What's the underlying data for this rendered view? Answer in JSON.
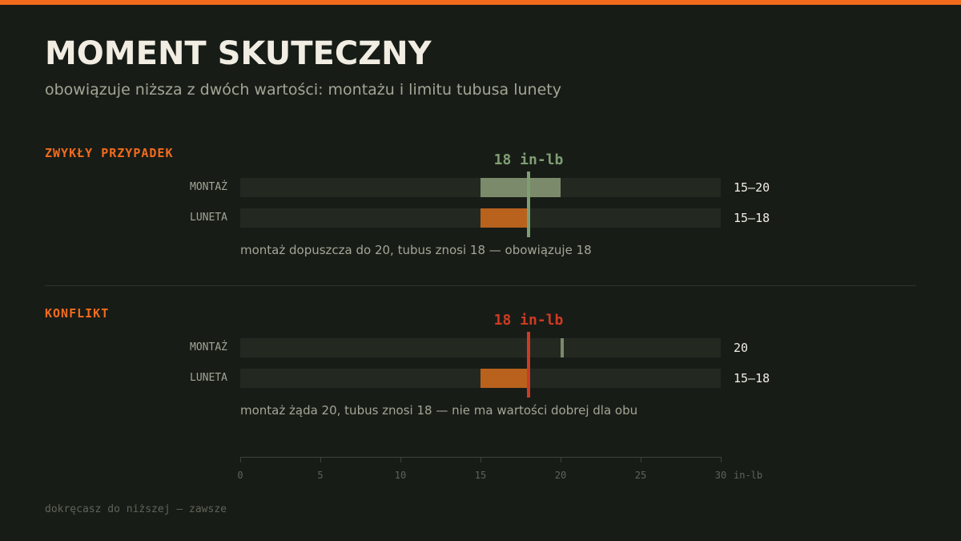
{
  "title": "MOMENT SKUTECZNY",
  "subtitle": "obowiązuje niższa z dwóch wartości: montażu i limitu tubusa lunety",
  "footer": "dokręcasz do niższej — zawsze",
  "colors": {
    "accent": "#f26b1d",
    "mount_range": "#7b8a6a",
    "scope_range": "#b8621e",
    "ok_marker": "#7f9e73",
    "conflict_marker": "#cf3a24"
  },
  "chart_data": {
    "type": "bar",
    "xlim": [
      0,
      30
    ],
    "x_ticks": [
      "0",
      "5",
      "10",
      "15",
      "20",
      "25",
      "30"
    ],
    "x_unit": "in-lb",
    "sections": [
      {
        "label": "ZWYKŁY PRZYPADEK",
        "marker": {
          "value": 18,
          "label": "18 in-lb",
          "status": "ok"
        },
        "rows": [
          {
            "label": "MONTAŻ",
            "range": [
              15,
              20
            ],
            "value_label": "15–20"
          },
          {
            "label": "LUNETA",
            "range": [
              15,
              18
            ],
            "value_label": "15–18"
          }
        ],
        "note": "montaż dopuszcza do 20, tubus znosi 18 — obowiązuje 18"
      },
      {
        "label": "KONFLIKT",
        "marker": {
          "value": 18,
          "label": "18 in-lb",
          "status": "conflict"
        },
        "rows": [
          {
            "label": "MONTAŻ",
            "range": [
              20,
              20
            ],
            "value_label": "20"
          },
          {
            "label": "LUNETA",
            "range": [
              15,
              18
            ],
            "value_label": "15–18"
          }
        ],
        "note": "montaż żąda 20, tubus znosi 18 — nie ma wartości dobrej dla obu"
      }
    ]
  }
}
